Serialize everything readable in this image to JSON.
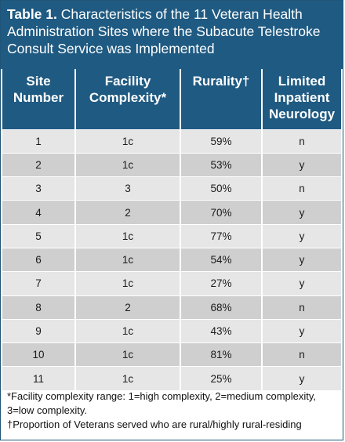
{
  "caption": {
    "label": "Table 1.",
    "text": " Characteristics of the 11 Veteran Health Administration Sites where the Subacute Telestroke Consult Service was Implemented"
  },
  "headers": {
    "site": "Site Number",
    "complexity": "Facility Complexity*",
    "rurality": "Rurality†",
    "neurology": "Limited Inpatient Neurology"
  },
  "rows": [
    {
      "site": "1",
      "complexity": "1c",
      "rurality": "59%",
      "neurology": "n"
    },
    {
      "site": "2",
      "complexity": "1c",
      "rurality": "53%",
      "neurology": "y"
    },
    {
      "site": "3",
      "complexity": "3",
      "rurality": "50%",
      "neurology": "n"
    },
    {
      "site": "4",
      "complexity": "2",
      "rurality": "70%",
      "neurology": "y"
    },
    {
      "site": "5",
      "complexity": "1c",
      "rurality": "77%",
      "neurology": "y"
    },
    {
      "site": "6",
      "complexity": "1c",
      "rurality": "54%",
      "neurology": "y"
    },
    {
      "site": "7",
      "complexity": "1c",
      "rurality": "27%",
      "neurology": "y"
    },
    {
      "site": "8",
      "complexity": "2",
      "rurality": "68%",
      "neurology": "n"
    },
    {
      "site": "9",
      "complexity": "1c",
      "rurality": "43%",
      "neurology": "y"
    },
    {
      "site": "10",
      "complexity": "1c",
      "rurality": "81%",
      "neurology": "n"
    },
    {
      "site": "11",
      "complexity": "1c",
      "rurality": "25%",
      "neurology": "y"
    }
  ],
  "footnotes": {
    "complexity": "*Facility complexity range: 1=high complexity, 2=medium complexity, 3=low complexity.",
    "rurality": "†Proportion of Veterans served who are rural/highly rural-residing"
  },
  "colors": {
    "header_bg": "#1f5a82",
    "row_light": "#e6e6e6",
    "row_dark": "#cfcfcf"
  }
}
